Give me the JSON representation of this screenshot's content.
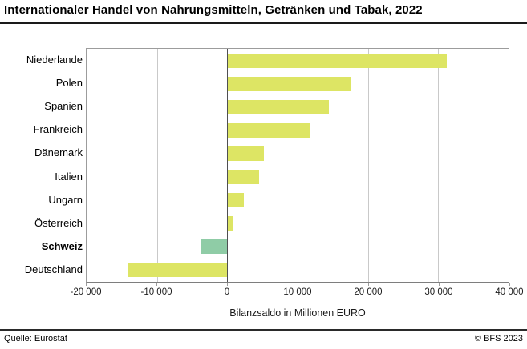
{
  "title": "Internationaler Handel von Nahrungsmitteln, Getränken und Tabak, 2022",
  "footer": {
    "source": "Quelle: Eurostat",
    "copyright": "© BFS 2023"
  },
  "chart_data": {
    "type": "bar",
    "orientation": "horizontal",
    "title": "Internationaler Handel von Nahrungsmitteln, Getränken und Tabak, 2022",
    "xlabel": "Bilanzsaldo in Millionen EURO",
    "categories": [
      "Niederlande",
      "Polen",
      "Spanien",
      "Frankreich",
      "Dänemark",
      "Italien",
      "Ungarn",
      "Österreich",
      "Schweiz",
      "Deutschland"
    ],
    "values": [
      31200,
      17700,
      14500,
      11700,
      5200,
      4500,
      2400,
      800,
      -3800,
      -14100
    ],
    "highlight_category": "Schweiz",
    "xlim": [
      -20000,
      40000
    ],
    "xticks": [
      -20000,
      -10000,
      0,
      10000,
      20000,
      30000,
      40000
    ],
    "xtick_labels": [
      "-20 000",
      "-10 000",
      "0",
      "10 000",
      "20 000",
      "30 000",
      "40 000"
    ],
    "bar_color": "#dde564",
    "highlight_color": "#8fcca6",
    "grid": true,
    "gridline_color": "#c9c9c9",
    "zeroline_color": "#4f4f51",
    "legend": "none"
  }
}
